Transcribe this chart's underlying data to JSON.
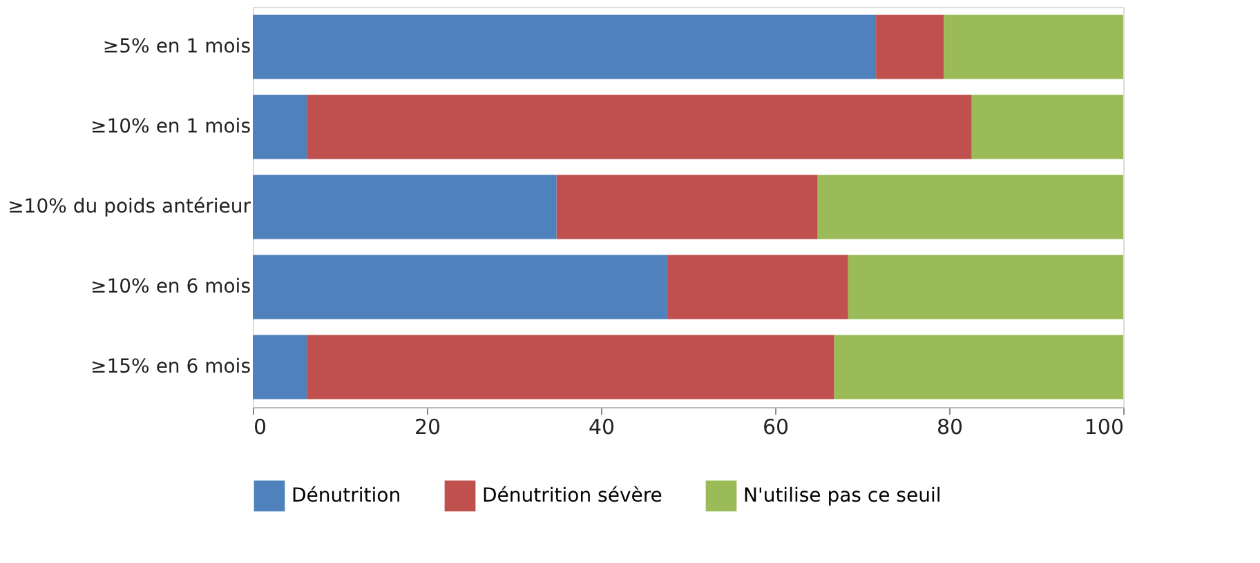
{
  "chart_data": {
    "type": "bar",
    "orientation": "horizontal",
    "stacked": true,
    "categories": [
      "≥5% en 1 mois",
      "≥10% en 1 mois",
      "≥10% du poids antérieur",
      "≥10% en 6 mois",
      "≥15% en 6 mois"
    ],
    "series": [
      {
        "name": "Dénutrition",
        "color": "#4f81bd",
        "values": [
          71.6,
          6.2,
          34.9,
          47.6,
          6.2
        ]
      },
      {
        "name": "Dénutrition sévère",
        "color": "#c0504d",
        "values": [
          7.8,
          76.4,
          30.0,
          20.8,
          60.6
        ]
      },
      {
        "name": "N'utilise pas ce seuil",
        "color": "#9bbb59",
        "values": [
          20.6,
          17.4,
          35.1,
          31.6,
          33.2
        ]
      }
    ],
    "xlim": [
      0,
      100
    ],
    "xticks": [
      0,
      20,
      40,
      60,
      80,
      100
    ],
    "grid": false,
    "legend": "bottom"
  }
}
